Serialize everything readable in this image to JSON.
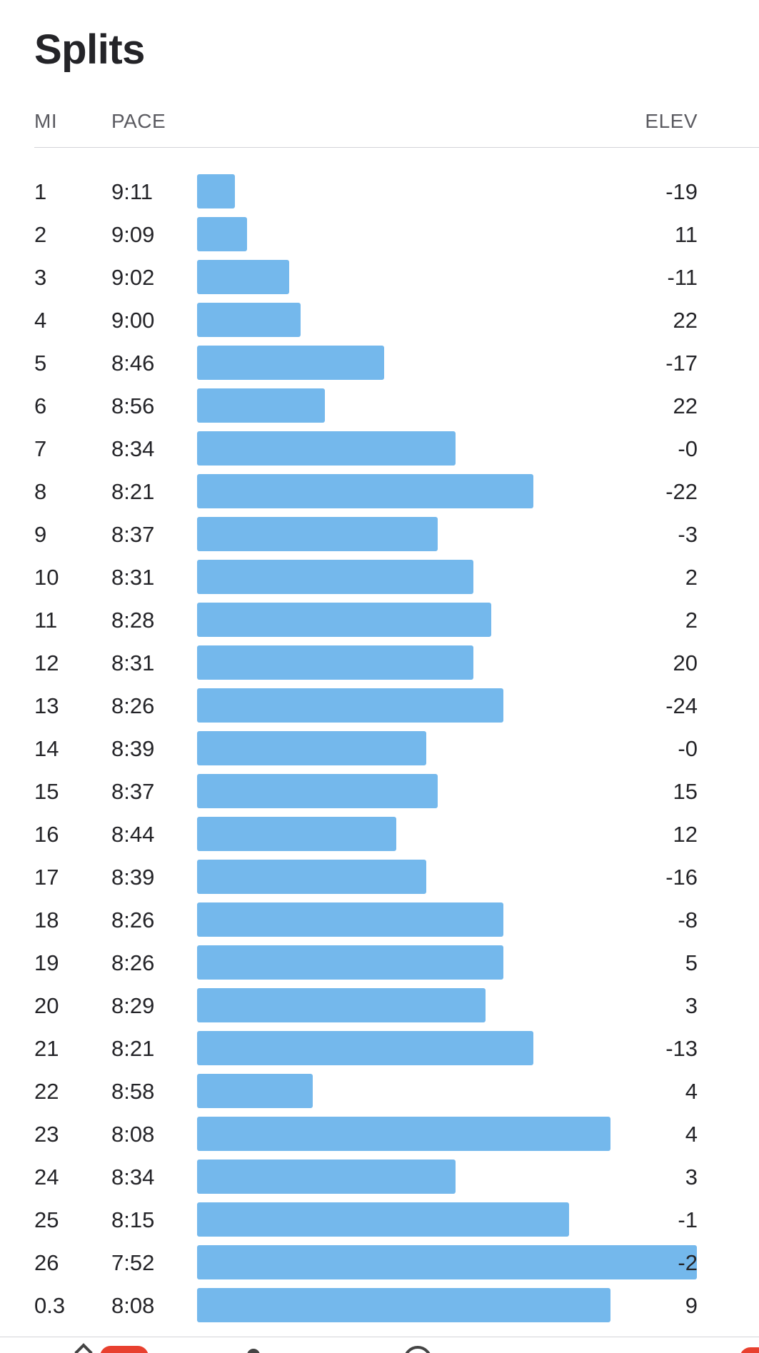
{
  "title": "Splits",
  "columns": {
    "mi": "MI",
    "pace": "PACE",
    "elev": "ELEV"
  },
  "bar_color": "#74b8ec",
  "pace_scale": {
    "note_seconds_min": 480,
    "note_seconds_max": 552
  },
  "splits": [
    {
      "mi": "1",
      "pace": "9:11",
      "elev": "-19"
    },
    {
      "mi": "2",
      "pace": "9:09",
      "elev": "11"
    },
    {
      "mi": "3",
      "pace": "9:02",
      "elev": "-11"
    },
    {
      "mi": "4",
      "pace": "9:00",
      "elev": "22"
    },
    {
      "mi": "5",
      "pace": "8:46",
      "elev": "-17"
    },
    {
      "mi": "6",
      "pace": "8:56",
      "elev": "22"
    },
    {
      "mi": "7",
      "pace": "8:34",
      "elev": "-0"
    },
    {
      "mi": "8",
      "pace": "8:21",
      "elev": "-22"
    },
    {
      "mi": "9",
      "pace": "8:37",
      "elev": "-3"
    },
    {
      "mi": "10",
      "pace": "8:31",
      "elev": "2"
    },
    {
      "mi": "11",
      "pace": "8:28",
      "elev": "2"
    },
    {
      "mi": "12",
      "pace": "8:31",
      "elev": "20"
    },
    {
      "mi": "13",
      "pace": "8:26",
      "elev": "-24"
    },
    {
      "mi": "14",
      "pace": "8:39",
      "elev": "-0"
    },
    {
      "mi": "15",
      "pace": "8:37",
      "elev": "15"
    },
    {
      "mi": "16",
      "pace": "8:44",
      "elev": "12"
    },
    {
      "mi": "17",
      "pace": "8:39",
      "elev": "-16"
    },
    {
      "mi": "18",
      "pace": "8:26",
      "elev": "-8"
    },
    {
      "mi": "19",
      "pace": "8:26",
      "elev": "5"
    },
    {
      "mi": "20",
      "pace": "8:29",
      "elev": "3"
    },
    {
      "mi": "21",
      "pace": "8:21",
      "elev": "-13"
    },
    {
      "mi": "22",
      "pace": "8:58",
      "elev": "4"
    },
    {
      "mi": "23",
      "pace": "8:08",
      "elev": "4"
    },
    {
      "mi": "24",
      "pace": "8:34",
      "elev": "3"
    },
    {
      "mi": "25",
      "pace": "8:15",
      "elev": "-1"
    },
    {
      "mi": "26",
      "pace": "7:52",
      "elev": "-2"
    },
    {
      "mi": "0.3",
      "pace": "8:08",
      "elev": "9"
    }
  ],
  "tabbar": {
    "icons": [
      "back-chevron-icon",
      "notification-badge-icon",
      "dot-icon",
      "record-circle-icon",
      "profile-badge-icon"
    ]
  }
}
